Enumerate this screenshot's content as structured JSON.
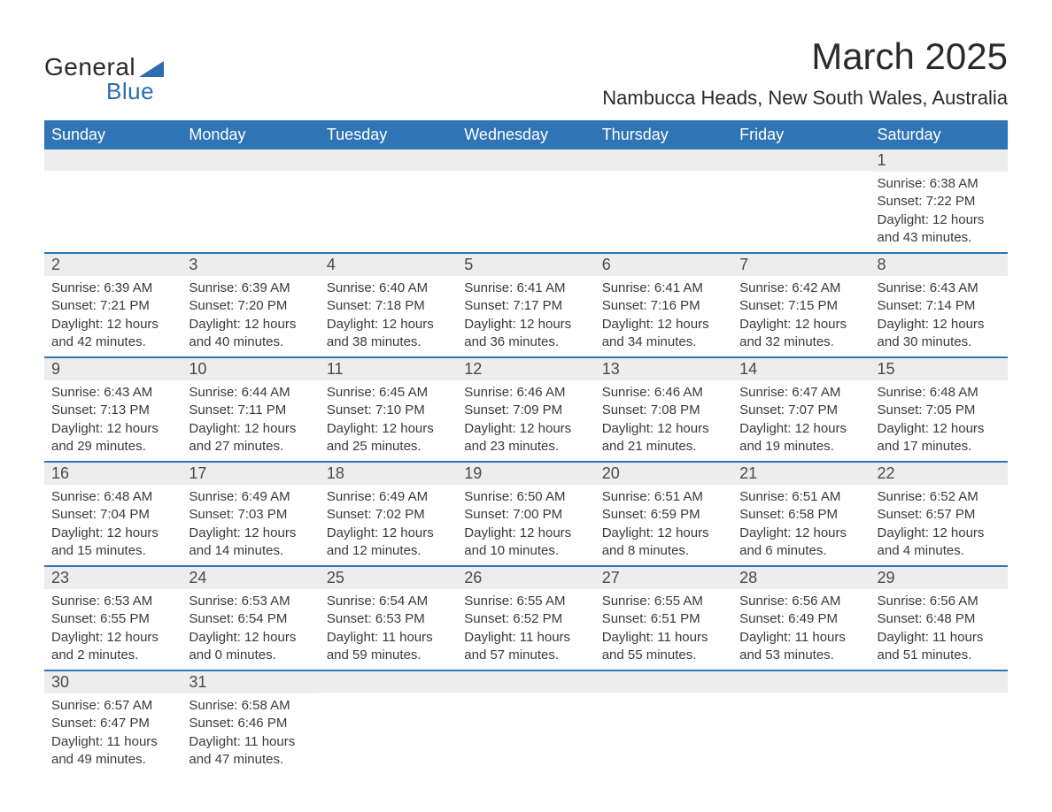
{
  "colors": {
    "header_bg": "#2f74b5",
    "header_text": "#ffffff",
    "daynum_bg": "#ededed",
    "daynum_text": "#4a4a4a",
    "body_text": "#3a3a3a",
    "row_border": "#2f74b5",
    "page_bg": "#ffffff",
    "logo_dark": "#2a2a2a",
    "logo_blue": "#2c6cb0"
  },
  "logo": {
    "word1": "General",
    "word2": "Blue"
  },
  "title": "March 2025",
  "location": "Nambucca Heads, New South Wales, Australia",
  "day_headers": [
    "Sunday",
    "Monday",
    "Tuesday",
    "Wednesday",
    "Thursday",
    "Friday",
    "Saturday"
  ],
  "weeks": [
    [
      {
        "day": "",
        "sunrise": "",
        "sunset": "",
        "daylight": ""
      },
      {
        "day": "",
        "sunrise": "",
        "sunset": "",
        "daylight": ""
      },
      {
        "day": "",
        "sunrise": "",
        "sunset": "",
        "daylight": ""
      },
      {
        "day": "",
        "sunrise": "",
        "sunset": "",
        "daylight": ""
      },
      {
        "day": "",
        "sunrise": "",
        "sunset": "",
        "daylight": ""
      },
      {
        "day": "",
        "sunrise": "",
        "sunset": "",
        "daylight": ""
      },
      {
        "day": "1",
        "sunrise": "Sunrise: 6:38 AM",
        "sunset": "Sunset: 7:22 PM",
        "daylight": "Daylight: 12 hours and 43 minutes."
      }
    ],
    [
      {
        "day": "2",
        "sunrise": "Sunrise: 6:39 AM",
        "sunset": "Sunset: 7:21 PM",
        "daylight": "Daylight: 12 hours and 42 minutes."
      },
      {
        "day": "3",
        "sunrise": "Sunrise: 6:39 AM",
        "sunset": "Sunset: 7:20 PM",
        "daylight": "Daylight: 12 hours and 40 minutes."
      },
      {
        "day": "4",
        "sunrise": "Sunrise: 6:40 AM",
        "sunset": "Sunset: 7:18 PM",
        "daylight": "Daylight: 12 hours and 38 minutes."
      },
      {
        "day": "5",
        "sunrise": "Sunrise: 6:41 AM",
        "sunset": "Sunset: 7:17 PM",
        "daylight": "Daylight: 12 hours and 36 minutes."
      },
      {
        "day": "6",
        "sunrise": "Sunrise: 6:41 AM",
        "sunset": "Sunset: 7:16 PM",
        "daylight": "Daylight: 12 hours and 34 minutes."
      },
      {
        "day": "7",
        "sunrise": "Sunrise: 6:42 AM",
        "sunset": "Sunset: 7:15 PM",
        "daylight": "Daylight: 12 hours and 32 minutes."
      },
      {
        "day": "8",
        "sunrise": "Sunrise: 6:43 AM",
        "sunset": "Sunset: 7:14 PM",
        "daylight": "Daylight: 12 hours and 30 minutes."
      }
    ],
    [
      {
        "day": "9",
        "sunrise": "Sunrise: 6:43 AM",
        "sunset": "Sunset: 7:13 PM",
        "daylight": "Daylight: 12 hours and 29 minutes."
      },
      {
        "day": "10",
        "sunrise": "Sunrise: 6:44 AM",
        "sunset": "Sunset: 7:11 PM",
        "daylight": "Daylight: 12 hours and 27 minutes."
      },
      {
        "day": "11",
        "sunrise": "Sunrise: 6:45 AM",
        "sunset": "Sunset: 7:10 PM",
        "daylight": "Daylight: 12 hours and 25 minutes."
      },
      {
        "day": "12",
        "sunrise": "Sunrise: 6:46 AM",
        "sunset": "Sunset: 7:09 PM",
        "daylight": "Daylight: 12 hours and 23 minutes."
      },
      {
        "day": "13",
        "sunrise": "Sunrise: 6:46 AM",
        "sunset": "Sunset: 7:08 PM",
        "daylight": "Daylight: 12 hours and 21 minutes."
      },
      {
        "day": "14",
        "sunrise": "Sunrise: 6:47 AM",
        "sunset": "Sunset: 7:07 PM",
        "daylight": "Daylight: 12 hours and 19 minutes."
      },
      {
        "day": "15",
        "sunrise": "Sunrise: 6:48 AM",
        "sunset": "Sunset: 7:05 PM",
        "daylight": "Daylight: 12 hours and 17 minutes."
      }
    ],
    [
      {
        "day": "16",
        "sunrise": "Sunrise: 6:48 AM",
        "sunset": "Sunset: 7:04 PM",
        "daylight": "Daylight: 12 hours and 15 minutes."
      },
      {
        "day": "17",
        "sunrise": "Sunrise: 6:49 AM",
        "sunset": "Sunset: 7:03 PM",
        "daylight": "Daylight: 12 hours and 14 minutes."
      },
      {
        "day": "18",
        "sunrise": "Sunrise: 6:49 AM",
        "sunset": "Sunset: 7:02 PM",
        "daylight": "Daylight: 12 hours and 12 minutes."
      },
      {
        "day": "19",
        "sunrise": "Sunrise: 6:50 AM",
        "sunset": "Sunset: 7:00 PM",
        "daylight": "Daylight: 12 hours and 10 minutes."
      },
      {
        "day": "20",
        "sunrise": "Sunrise: 6:51 AM",
        "sunset": "Sunset: 6:59 PM",
        "daylight": "Daylight: 12 hours and 8 minutes."
      },
      {
        "day": "21",
        "sunrise": "Sunrise: 6:51 AM",
        "sunset": "Sunset: 6:58 PM",
        "daylight": "Daylight: 12 hours and 6 minutes."
      },
      {
        "day": "22",
        "sunrise": "Sunrise: 6:52 AM",
        "sunset": "Sunset: 6:57 PM",
        "daylight": "Daylight: 12 hours and 4 minutes."
      }
    ],
    [
      {
        "day": "23",
        "sunrise": "Sunrise: 6:53 AM",
        "sunset": "Sunset: 6:55 PM",
        "daylight": "Daylight: 12 hours and 2 minutes."
      },
      {
        "day": "24",
        "sunrise": "Sunrise: 6:53 AM",
        "sunset": "Sunset: 6:54 PM",
        "daylight": "Daylight: 12 hours and 0 minutes."
      },
      {
        "day": "25",
        "sunrise": "Sunrise: 6:54 AM",
        "sunset": "Sunset: 6:53 PM",
        "daylight": "Daylight: 11 hours and 59 minutes."
      },
      {
        "day": "26",
        "sunrise": "Sunrise: 6:55 AM",
        "sunset": "Sunset: 6:52 PM",
        "daylight": "Daylight: 11 hours and 57 minutes."
      },
      {
        "day": "27",
        "sunrise": "Sunrise: 6:55 AM",
        "sunset": "Sunset: 6:51 PM",
        "daylight": "Daylight: 11 hours and 55 minutes."
      },
      {
        "day": "28",
        "sunrise": "Sunrise: 6:56 AM",
        "sunset": "Sunset: 6:49 PM",
        "daylight": "Daylight: 11 hours and 53 minutes."
      },
      {
        "day": "29",
        "sunrise": "Sunrise: 6:56 AM",
        "sunset": "Sunset: 6:48 PM",
        "daylight": "Daylight: 11 hours and 51 minutes."
      }
    ],
    [
      {
        "day": "30",
        "sunrise": "Sunrise: 6:57 AM",
        "sunset": "Sunset: 6:47 PM",
        "daylight": "Daylight: 11 hours and 49 minutes."
      },
      {
        "day": "31",
        "sunrise": "Sunrise: 6:58 AM",
        "sunset": "Sunset: 6:46 PM",
        "daylight": "Daylight: 11 hours and 47 minutes."
      },
      {
        "day": "",
        "sunrise": "",
        "sunset": "",
        "daylight": ""
      },
      {
        "day": "",
        "sunrise": "",
        "sunset": "",
        "daylight": ""
      },
      {
        "day": "",
        "sunrise": "",
        "sunset": "",
        "daylight": ""
      },
      {
        "day": "",
        "sunrise": "",
        "sunset": "",
        "daylight": ""
      },
      {
        "day": "",
        "sunrise": "",
        "sunset": "",
        "daylight": ""
      }
    ]
  ]
}
